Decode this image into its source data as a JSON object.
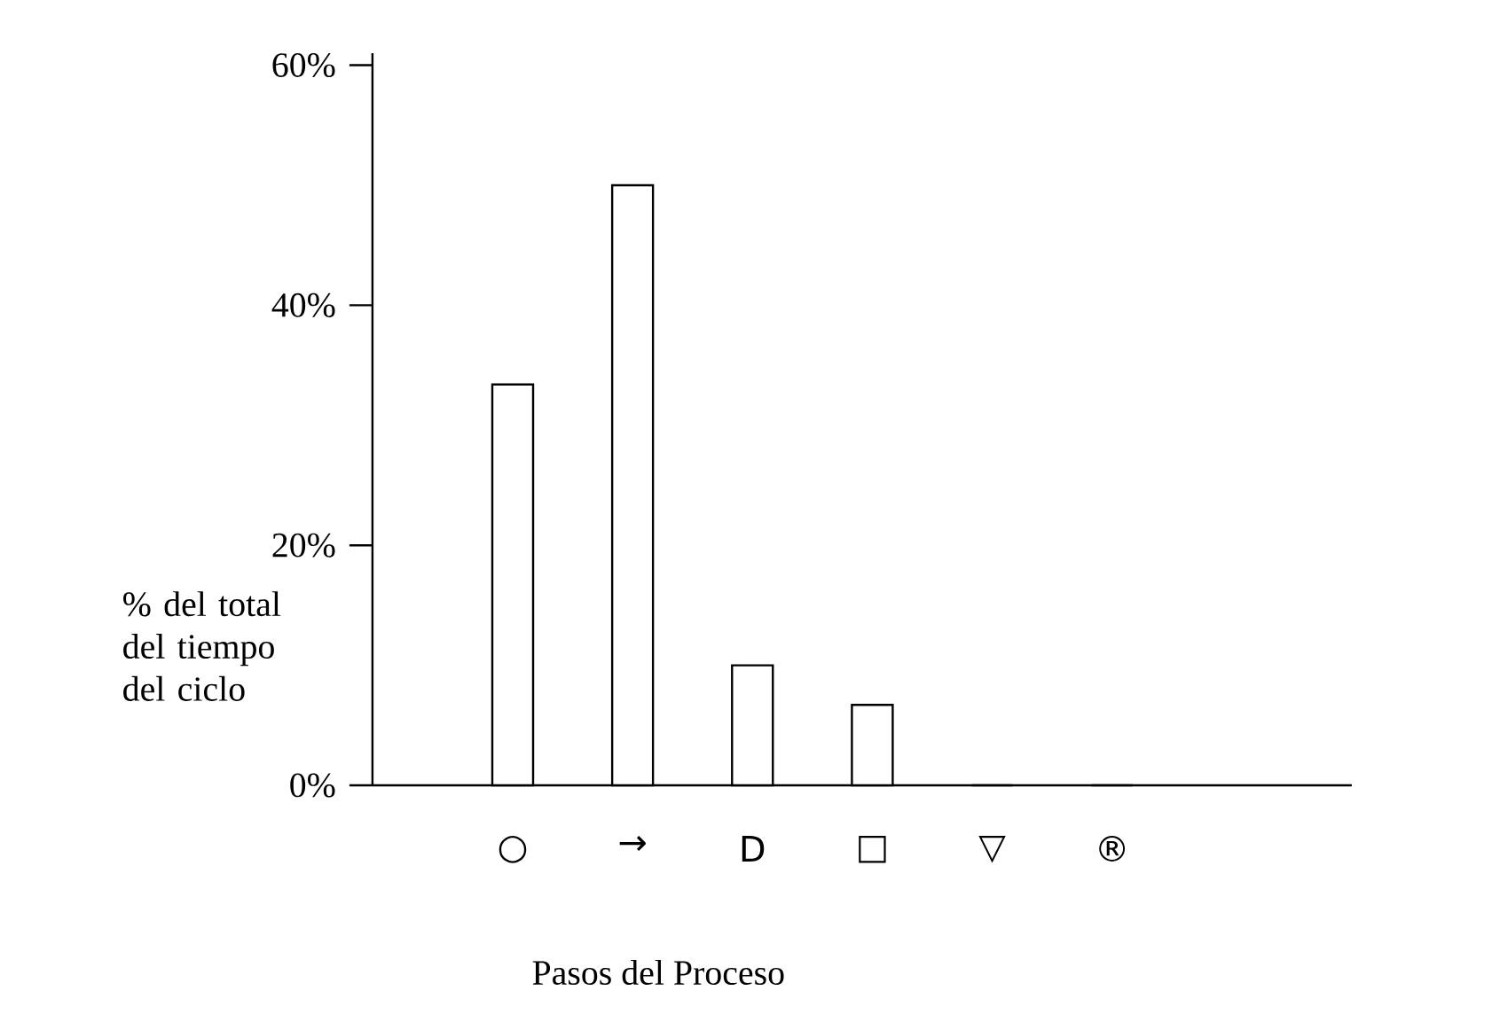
{
  "chart_data": {
    "type": "bar",
    "xlabel": "Pasos del Proceso",
    "ylabel": "% del total del tiempo del ciclo",
    "categories": [
      "○",
      "→",
      "D",
      "□",
      "▽",
      "®"
    ],
    "values": [
      33.4,
      50,
      10,
      6.7,
      0,
      0
    ],
    "color": "#ffffff",
    "ylim": [
      0,
      61
    ],
    "yticks": [
      {
        "value": 0,
        "label": "0%"
      },
      {
        "value": 20,
        "label": "20%"
      },
      {
        "value": 40,
        "label": "40%"
      },
      {
        "value": 60,
        "label": "60%"
      }
    ]
  }
}
